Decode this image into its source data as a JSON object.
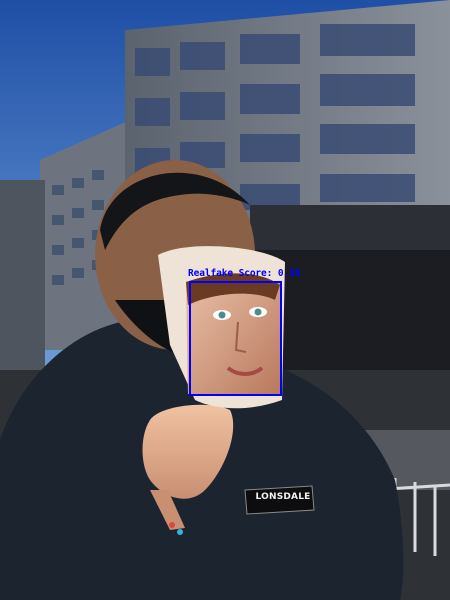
{
  "detection": {
    "label": "Realfake Score: 0.38",
    "box_color": "#0000ff"
  },
  "jacket_patch": {
    "text": "LONSDALE"
  },
  "colors": {
    "sky": "#3a68b8",
    "jacket": "#1c2430",
    "building": "#6f7783",
    "skin": "#d9a48a"
  }
}
